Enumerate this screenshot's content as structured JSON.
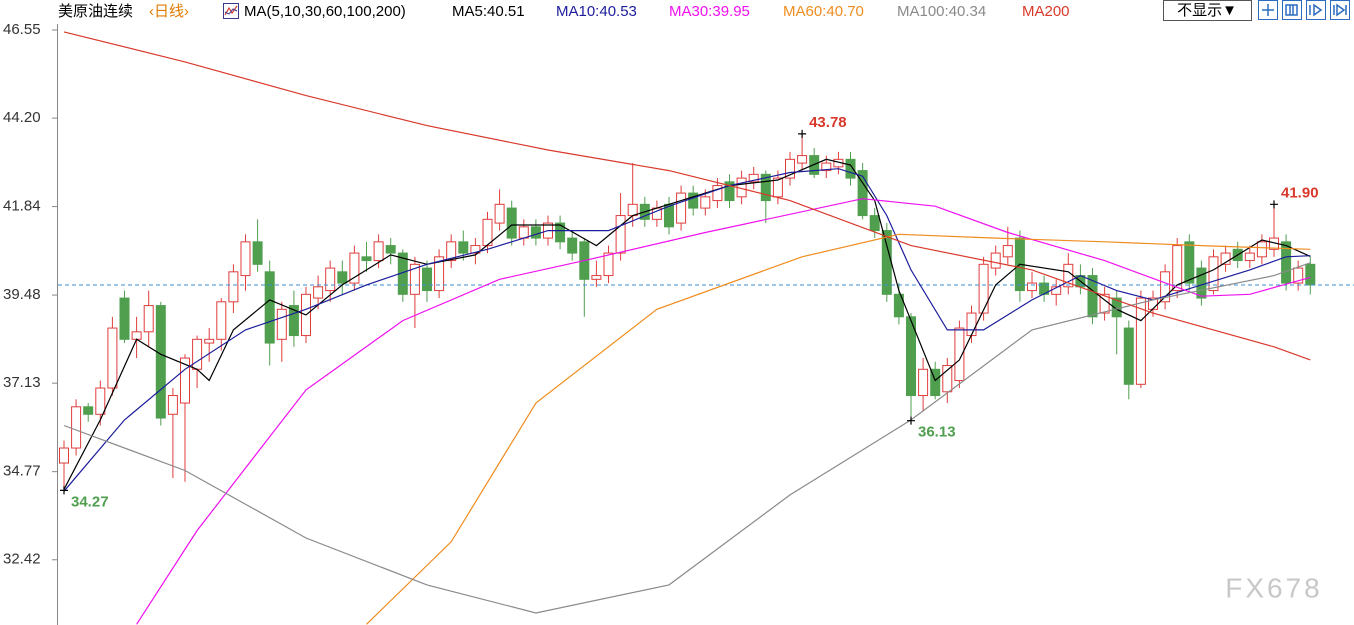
{
  "chart_data": {
    "type": "candlestick",
    "title": "美原油连续",
    "subtitle": "‹日线›",
    "indicator": "MA(5,10,30,60,100,200)",
    "toolbar": {
      "hide_button": "不显示▼"
    },
    "watermark": "FX678",
    "up_color": "#e03c3c",
    "down_color": "#4f9f4f",
    "ylim": [
      30.68,
      47.35
    ],
    "yticks": [
      46.55,
      {
        "value": 44.2,
        "label": "44.20"
      },
      41.84,
      39.48,
      37.13,
      34.77,
      32.42
    ],
    "open": [
      35.0,
      35.4,
      36.5,
      36.3,
      37.0,
      39.4,
      38.3,
      38.5,
      39.2,
      36.3,
      36.6,
      37.5,
      38.2,
      38.3,
      39.3,
      40.0,
      40.9,
      40.1,
      38.3,
      39.2,
      38.4,
      39.4,
      39.6,
      40.1,
      39.8,
      40.5,
      40.4,
      40.8,
      40.6,
      39.5,
      40.2,
      39.6,
      40.4,
      40.9,
      40.6,
      40.8,
      41.4,
      41.8,
      41.0,
      41.3,
      41.0,
      41.4,
      41.0,
      40.9,
      39.9,
      40.0,
      40.6,
      41.6,
      41.9,
      41.5,
      41.9,
      41.4,
      42.2,
      41.8,
      42.0,
      42.5,
      42.1,
      42.5,
      42.7,
      42.1,
      42.6,
      43.0,
      43.2,
      42.8,
      42.9,
      43.1,
      42.8,
      41.6,
      41.2,
      39.5,
      38.9,
      36.8,
      37.5,
      36.9,
      37.2,
      38.4,
      39.0,
      40.2,
      40.5,
      41.0,
      39.6,
      39.8,
      39.5,
      39.7,
      40.0,
      40.0,
      39.0,
      39.4,
      38.6,
      37.1,
      39.1,
      39.3,
      39.6,
      40.9,
      40.2,
      39.6,
      40.3,
      40.7,
      40.4,
      40.5,
      40.7,
      40.9,
      39.8,
      40.3
    ],
    "high": [
      35.6,
      36.7,
      36.6,
      37.2,
      38.9,
      39.6,
      38.9,
      39.6,
      39.3,
      37.0,
      37.9,
      38.4,
      38.6,
      39.4,
      40.3,
      41.1,
      41.5,
      40.4,
      39.3,
      39.6,
      39.7,
      40.0,
      40.4,
      40.4,
      40.8,
      40.9,
      41.1,
      41.0,
      40.7,
      40.5,
      40.4,
      40.7,
      41.1,
      41.2,
      41.0,
      41.7,
      42.3,
      42.0,
      41.5,
      41.5,
      41.6,
      41.6,
      41.2,
      41.0,
      40.4,
      40.8,
      42.2,
      43.0,
      42.1,
      42.0,
      42.1,
      42.4,
      42.4,
      42.3,
      42.6,
      42.7,
      42.8,
      42.9,
      42.8,
      42.8,
      43.3,
      43.78,
      43.4,
      43.2,
      43.3,
      43.3,
      43.0,
      41.8,
      41.4,
      39.8,
      39.0,
      37.8,
      37.7,
      37.8,
      38.8,
      39.2,
      40.5,
      40.8,
      41.3,
      41.2,
      40.1,
      40.0,
      39.9,
      40.6,
      40.3,
      40.2,
      39.7,
      39.6,
      38.8,
      39.6,
      39.6,
      40.3,
      41.0,
      41.1,
      40.4,
      40.7,
      40.8,
      40.9,
      40.8,
      41.1,
      41.9,
      41.1,
      40.4,
      40.5
    ],
    "low": [
      34.27,
      35.2,
      36.1,
      36.0,
      36.8,
      38.2,
      37.8,
      38.1,
      36.0,
      34.6,
      34.5,
      37.0,
      37.7,
      38.0,
      39.0,
      39.6,
      40.1,
      37.6,
      37.7,
      38.1,
      38.2,
      39.1,
      39.3,
      39.5,
      39.6,
      40.1,
      40.2,
      40.3,
      39.3,
      38.6,
      39.3,
      39.4,
      40.2,
      40.4,
      40.3,
      40.6,
      41.2,
      40.8,
      40.8,
      40.8,
      40.8,
      40.7,
      40.4,
      38.9,
      39.7,
      39.8,
      40.4,
      41.3,
      41.3,
      41.3,
      41.1,
      41.2,
      41.6,
      41.6,
      41.8,
      41.8,
      41.9,
      42.3,
      41.4,
      41.9,
      42.4,
      42.8,
      42.6,
      42.6,
      42.7,
      42.4,
      41.5,
      41.0,
      39.3,
      38.7,
      36.13,
      36.4,
      36.7,
      36.6,
      37.0,
      38.2,
      38.8,
      40.0,
      40.3,
      39.3,
      39.4,
      39.3,
      39.2,
      39.5,
      39.5,
      38.7,
      38.8,
      37.9,
      36.7,
      37.0,
      38.9,
      39.1,
      39.4,
      39.6,
      39.2,
      39.5,
      40.1,
      40.2,
      40.2,
      40.3,
      40.5,
      39.6,
      39.6,
      39.5
    ],
    "close": [
      35.4,
      36.5,
      36.3,
      37.0,
      38.6,
      38.3,
      38.5,
      39.2,
      36.2,
      36.8,
      37.8,
      38.3,
      38.3,
      39.3,
      40.1,
      40.9,
      40.3,
      38.2,
      39.1,
      38.4,
      39.5,
      39.7,
      40.2,
      39.8,
      40.6,
      40.4,
      40.9,
      40.6,
      39.5,
      40.3,
      39.6,
      40.5,
      40.9,
      40.6,
      40.8,
      41.5,
      41.9,
      41.0,
      41.3,
      41.0,
      41.4,
      40.9,
      40.6,
      39.9,
      40.0,
      40.6,
      41.6,
      41.9,
      41.5,
      41.8,
      41.3,
      42.2,
      41.8,
      42.1,
      42.4,
      42.0,
      42.6,
      42.7,
      42.0,
      42.6,
      43.1,
      43.2,
      42.7,
      43.0,
      43.1,
      42.6,
      41.6,
      41.2,
      39.5,
      38.9,
      36.8,
      37.5,
      36.8,
      37.6,
      38.6,
      39.0,
      40.3,
      40.6,
      40.8,
      39.6,
      39.8,
      39.5,
      39.7,
      40.3,
      39.7,
      38.9,
      39.5,
      38.9,
      37.1,
      39.4,
      39.4,
      40.1,
      40.8,
      39.8,
      39.4,
      40.5,
      40.6,
      40.4,
      40.6,
      40.9,
      41.0,
      39.8,
      40.2,
      39.75
    ],
    "series": [
      {
        "name": "MA5:40.51",
        "color": "#000000",
        "x": [
          0,
          3,
          6,
          8,
          11,
          12,
          14,
          17,
          20,
          23,
          27,
          30,
          34,
          37,
          41,
          44,
          47,
          51,
          55,
          59,
          63,
          65,
          67,
          69,
          72,
          74,
          77,
          79,
          83,
          87,
          89,
          92,
          95,
          99,
          101,
          103
        ],
        "values": [
          34.3,
          36.15,
          38.3,
          37.9,
          37.5,
          37.2,
          38.55,
          39.35,
          38.95,
          39.75,
          40.55,
          40.3,
          40.55,
          41.35,
          41.35,
          40.8,
          41.6,
          42.0,
          42.4,
          42.55,
          43.1,
          42.95,
          42.0,
          39.6,
          37.2,
          37.75,
          39.75,
          40.3,
          40.1,
          39.1,
          38.8,
          39.75,
          40.15,
          40.95,
          40.8,
          40.51
        ]
      },
      {
        "name": "MA10:40.53",
        "color": "#1c1c9c",
        "x": [
          0,
          5,
          10,
          15,
          20,
          25,
          30,
          35,
          40,
          45,
          50,
          55,
          60,
          64,
          66,
          68,
          70,
          73,
          76,
          80,
          84,
          87,
          90,
          94,
          98,
          101,
          103
        ],
        "values": [
          34.25,
          36.15,
          37.5,
          38.55,
          39.1,
          39.75,
          40.3,
          40.7,
          41.2,
          41.2,
          41.85,
          42.4,
          42.75,
          42.85,
          42.65,
          41.6,
          40.15,
          38.55,
          38.55,
          39.35,
          40.0,
          39.6,
          39.35,
          39.75,
          40.15,
          40.5,
          40.53
        ]
      },
      {
        "name": "MA30:39.95",
        "color": "#f010f0",
        "x": [
          6,
          11,
          20,
          28,
          36,
          43,
          53,
          66,
          72,
          78,
          86,
          94,
          98,
          103
        ],
        "values": [
          30.7,
          33.2,
          36.95,
          38.8,
          39.9,
          40.4,
          41.15,
          42.05,
          41.85,
          41.15,
          40.4,
          39.45,
          39.5,
          39.95
        ]
      },
      {
        "name": "MA60:40.70",
        "color": "#f08c1e",
        "x": [
          25,
          32,
          39,
          49,
          61,
          69,
          77,
          86,
          94,
          103
        ],
        "values": [
          30.7,
          32.9,
          36.6,
          39.1,
          40.5,
          41.1,
          41.0,
          40.9,
          40.8,
          40.7
        ]
      },
      {
        "name": "MA100:40.34",
        "color": "#8a8a8a",
        "x": [
          0,
          10,
          20,
          30,
          39,
          50,
          60,
          70,
          80,
          90,
          100,
          103
        ],
        "values": [
          36.0,
          34.8,
          33.0,
          31.75,
          31.0,
          31.75,
          34.15,
          36.15,
          38.55,
          39.35,
          40.0,
          40.34
        ]
      },
      {
        "name": "MA200",
        "color": "#d9392b",
        "x": [
          0,
          10,
          20,
          30,
          40,
          50,
          60,
          70,
          80,
          90,
          100,
          103
        ],
        "values": [
          46.5,
          45.7,
          44.8,
          44.0,
          43.35,
          42.8,
          42.0,
          40.8,
          40.15,
          39.0,
          38.1,
          37.75
        ]
      }
    ],
    "annotations": [
      {
        "x": 61,
        "value": 43.78,
        "label": "43.78",
        "color": "#d9392b"
      },
      {
        "x": 70,
        "value": 36.13,
        "label": "36.13",
        "color": "#4f9f4f"
      },
      {
        "x": 0,
        "value": 34.27,
        "label": "34.27",
        "color": "#4f9f4f"
      },
      {
        "x": 100,
        "value": 41.9,
        "label": "41.90",
        "color": "#d9392b"
      }
    ]
  }
}
